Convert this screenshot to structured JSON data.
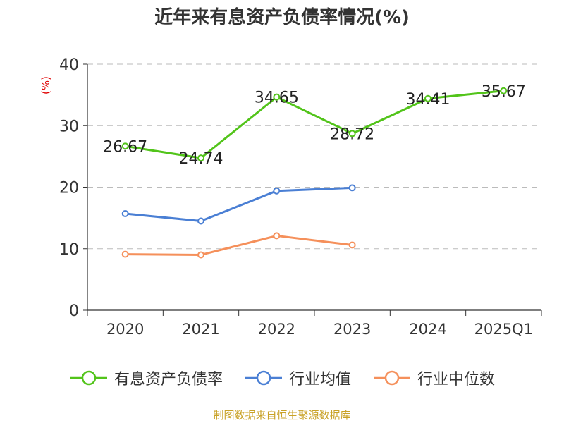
{
  "title": "近年来有息资产负债率情况(%)",
  "source_note": "制图数据来自恒生聚源数据库",
  "colors": {
    "series_main": "#52c41a",
    "series_avg": "#4a7fd4",
    "series_median": "#f5905b",
    "grid": "#bbbbbb",
    "axis": "#333333"
  },
  "chart_data": {
    "type": "line",
    "title": "近年来有息资产负债率情况(%)",
    "xlabel": "",
    "ylabel": "(%)",
    "categories": [
      "2020",
      "2021",
      "2022",
      "2023",
      "2024",
      "2025Q1"
    ],
    "ylim": [
      0,
      40
    ],
    "yticks": [
      0,
      10,
      20,
      30,
      40
    ],
    "grid": true,
    "legend_placement": "bottom",
    "series": [
      {
        "name": "有息资产负债率",
        "color": "#52c41a",
        "values": [
          26.67,
          24.74,
          34.65,
          28.72,
          34.41,
          35.67
        ],
        "show_labels": true
      },
      {
        "name": "行业均值",
        "color": "#4a7fd4",
        "values": [
          15.7,
          14.5,
          19.4,
          19.9,
          null,
          null
        ],
        "show_labels": false
      },
      {
        "name": "行业中位数",
        "color": "#f5905b",
        "values": [
          9.1,
          9.0,
          12.1,
          10.6,
          null,
          null
        ],
        "show_labels": false
      }
    ]
  }
}
